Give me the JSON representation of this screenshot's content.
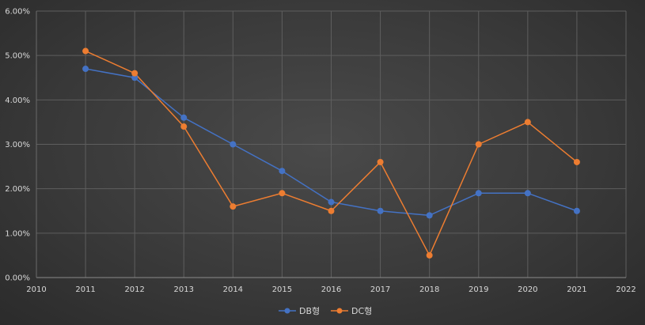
{
  "chart_data": {
    "type": "line",
    "x": [
      2011,
      2012,
      2013,
      2014,
      2015,
      2016,
      2017,
      2018,
      2019,
      2020,
      2021
    ],
    "xlim": [
      2010,
      2022
    ],
    "x_ticks": [
      2010,
      2011,
      2012,
      2013,
      2014,
      2015,
      2016,
      2017,
      2018,
      2019,
      2020,
      2021,
      2022
    ],
    "ylim": [
      0,
      0.06
    ],
    "y_ticks": [
      0,
      0.01,
      0.02,
      0.03,
      0.04,
      0.05,
      0.06
    ],
    "y_tick_labels": [
      "0.00%",
      "1.00%",
      "2.00%",
      "3.00%",
      "4.00%",
      "5.00%",
      "6.00%"
    ],
    "series": [
      {
        "name": "DB형",
        "color": "#4472c4",
        "values": [
          0.047,
          0.045,
          0.036,
          0.03,
          0.024,
          0.017,
          0.015,
          0.014,
          0.019,
          0.019,
          0.015
        ]
      },
      {
        "name": "DC형",
        "color": "#ed7d31",
        "values": [
          0.051,
          0.046,
          0.034,
          0.016,
          0.019,
          0.015,
          0.026,
          0.005,
          0.03,
          0.035,
          0.026
        ]
      }
    ],
    "grid": true,
    "legend_position": "bottom",
    "title": "",
    "xlabel": "",
    "ylabel": ""
  }
}
